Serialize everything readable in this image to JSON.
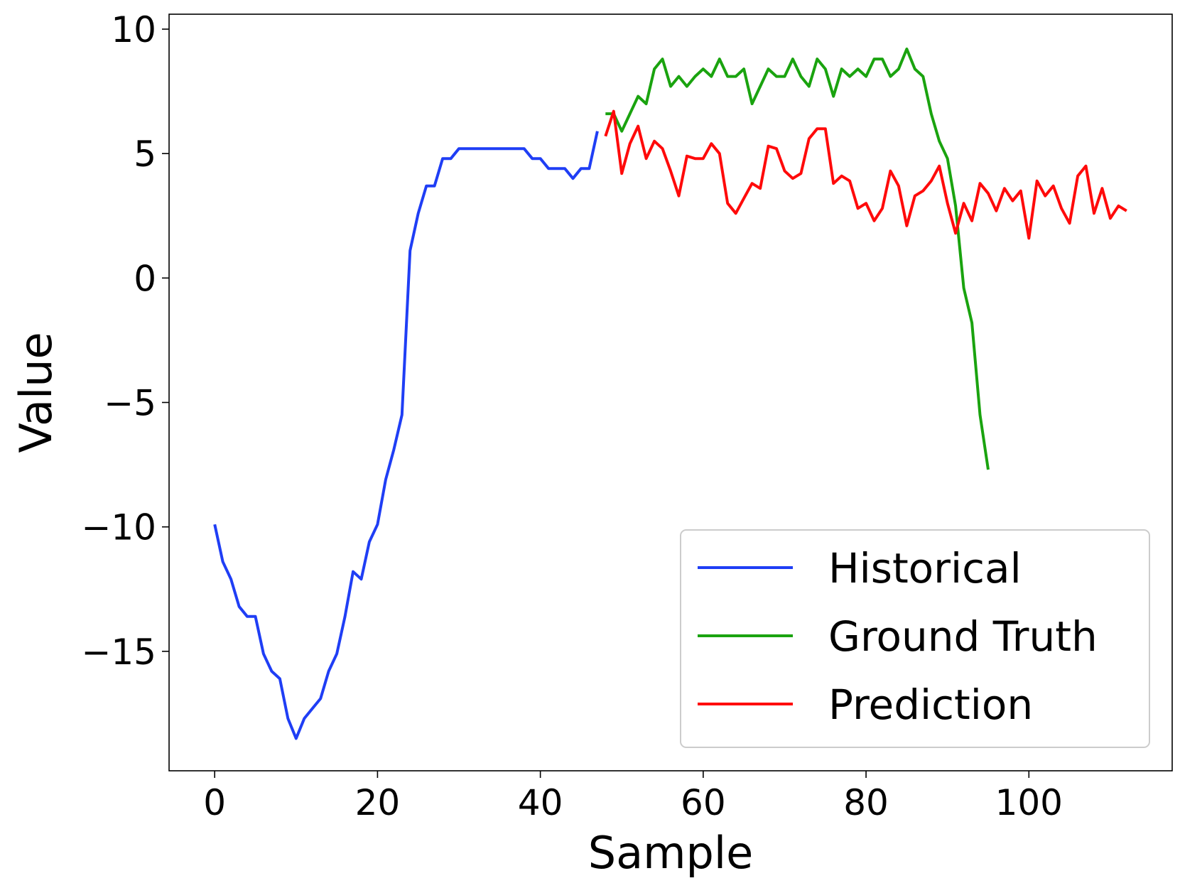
{
  "chart_data": {
    "type": "line",
    "xlabel": "Sample",
    "ylabel": "Value",
    "xlim": [
      -5.6,
      117.6
    ],
    "ylim": [
      -19.8,
      10.6
    ],
    "xticks": [
      0,
      20,
      40,
      60,
      80,
      100
    ],
    "yticks": [
      -15,
      -10,
      -5,
      0,
      5,
      10
    ],
    "ytick_labels": [
      "−15",
      "−10",
      "−5",
      "0",
      "5",
      "10"
    ],
    "xtick_labels": [
      "0",
      "20",
      "40",
      "60",
      "80",
      "100"
    ],
    "grid": false,
    "legend_position": "lower-right",
    "series": [
      {
        "name": "Historical",
        "color": "#1f3ef5",
        "x_start": 0,
        "values": [
          -9.9,
          -11.4,
          -12.1,
          -13.2,
          -13.6,
          -13.6,
          -15.1,
          -15.8,
          -16.1,
          -17.7,
          -18.5,
          -17.7,
          -17.3,
          -16.9,
          -15.8,
          -15.1,
          -13.6,
          -11.8,
          -12.1,
          -10.6,
          -9.9,
          -8.1,
          -6.9,
          -5.5,
          1.1,
          2.6,
          3.7,
          3.7,
          4.8,
          4.8,
          5.2,
          5.2,
          5.2,
          5.2,
          5.2,
          5.2,
          5.2,
          5.2,
          5.2,
          4.8,
          4.8,
          4.4,
          4.4,
          4.4,
          4.0,
          4.4,
          4.4,
          5.9
        ]
      },
      {
        "name": "Ground Truth",
        "color": "#1aa30f",
        "x_start": 48,
        "values": [
          6.6,
          6.6,
          5.9,
          6.6,
          7.3,
          7.0,
          8.4,
          8.8,
          7.7,
          8.1,
          7.7,
          8.1,
          8.4,
          8.1,
          8.8,
          8.1,
          8.1,
          8.4,
          7.0,
          7.7,
          8.4,
          8.1,
          8.1,
          8.8,
          8.1,
          7.7,
          8.8,
          8.4,
          7.3,
          8.4,
          8.1,
          8.4,
          8.1,
          8.8,
          8.8,
          8.1,
          8.4,
          9.2,
          8.4,
          8.1,
          6.6,
          5.5,
          4.8,
          2.9,
          -0.4,
          -1.8,
          -5.5,
          -7.7
        ]
      },
      {
        "name": "Prediction",
        "color": "#ff0a0a",
        "x_start": 48,
        "values": [
          5.7,
          6.7,
          4.2,
          5.4,
          6.1,
          4.8,
          5.5,
          5.2,
          4.3,
          3.3,
          4.9,
          4.8,
          4.8,
          5.4,
          5.0,
          3.0,
          2.6,
          3.2,
          3.8,
          3.6,
          5.3,
          5.2,
          4.3,
          4.0,
          4.2,
          5.6,
          6.0,
          6.0,
          3.8,
          4.1,
          3.9,
          2.8,
          3.0,
          2.3,
          2.8,
          4.3,
          3.7,
          2.1,
          3.3,
          3.5,
          3.9,
          4.5,
          3.0,
          1.8,
          3.0,
          2.3,
          3.8,
          3.4,
          2.7,
          3.6,
          3.1,
          3.5,
          1.6,
          3.9,
          3.3,
          3.7,
          2.8,
          2.2,
          4.1,
          4.5,
          2.6,
          3.6,
          2.4,
          2.9,
          2.7
        ]
      }
    ]
  }
}
